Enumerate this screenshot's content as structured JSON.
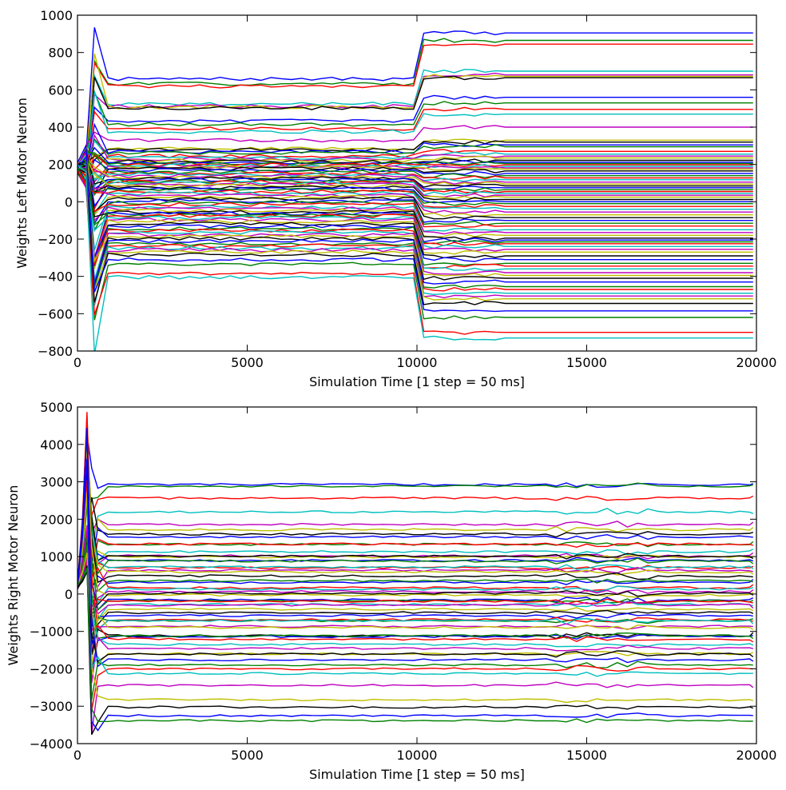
{
  "colors": [
    "#0000ff",
    "#008000",
    "#ff0000",
    "#00bfbf",
    "#bf00bf",
    "#bfbf00",
    "#000000"
  ],
  "chart_data": [
    {
      "type": "line",
      "xlabel": "Simulation Time [1 step = 50 ms]",
      "ylabel": "Weights Left Motor Neuron",
      "xlim": [
        0,
        20000
      ],
      "ylim": [
        -800,
        1000
      ],
      "xticks": [
        0,
        5000,
        10000,
        15000,
        20000
      ],
      "yticks": [
        -800,
        -600,
        -400,
        -200,
        0,
        200,
        400,
        600,
        800,
        1000
      ],
      "grid": false,
      "n_series_approx": 200,
      "series_final_values": [
        905,
        865,
        845,
        700,
        680,
        672,
        665,
        560,
        530,
        495,
        470,
        400,
        330,
        320,
        305,
        295,
        270,
        255,
        245,
        235,
        222,
        212,
        205,
        198,
        190,
        182,
        175,
        165,
        152,
        140,
        128,
        118,
        105,
        95,
        85,
        75,
        65,
        55,
        45,
        35,
        25,
        12,
        0,
        -10,
        -25,
        -40,
        -55,
        -70,
        -85,
        -100,
        -115,
        -130,
        -150,
        -165,
        -180,
        -195,
        -205,
        -215,
        -225,
        -240,
        -255,
        -270,
        -290,
        -310,
        -330,
        -345,
        -360,
        -380,
        -395,
        -410,
        -430,
        -455,
        -470,
        -490,
        -505,
        -520,
        -545,
        -585,
        -620,
        -700,
        -730
      ]
    },
    {
      "type": "line",
      "xlabel": "Simulation Time [1 step = 50 ms]",
      "ylabel": "Weights Right Motor Neuron",
      "xlim": [
        0,
        20000
      ],
      "ylim": [
        -4000,
        5000
      ],
      "xticks": [
        0,
        5000,
        10000,
        15000,
        20000
      ],
      "yticks": [
        -4000,
        -3000,
        -2000,
        -1000,
        0,
        1000,
        2000,
        3000,
        4000,
        5000
      ],
      "grid": false,
      "n_series_approx": 200,
      "series_final_values": [
        2950,
        2920,
        2620,
        2150,
        1920,
        1780,
        1650,
        1520,
        1400,
        1300,
        1200,
        1100,
        1020,
        950,
        880,
        810,
        740,
        670,
        600,
        530,
        460,
        390,
        320,
        250,
        180,
        110,
        40,
        -30,
        -100,
        -170,
        -240,
        -310,
        -380,
        -450,
        -520,
        -590,
        -660,
        -730,
        -800,
        -870,
        -950,
        -1030,
        -1110,
        -1190,
        -1280,
        -1370,
        -1460,
        -1560,
        -1680,
        -1800,
        -1900,
        -2000,
        -2120,
        -2500,
        -2850,
        -3050,
        -3250,
        -3400
      ]
    }
  ]
}
